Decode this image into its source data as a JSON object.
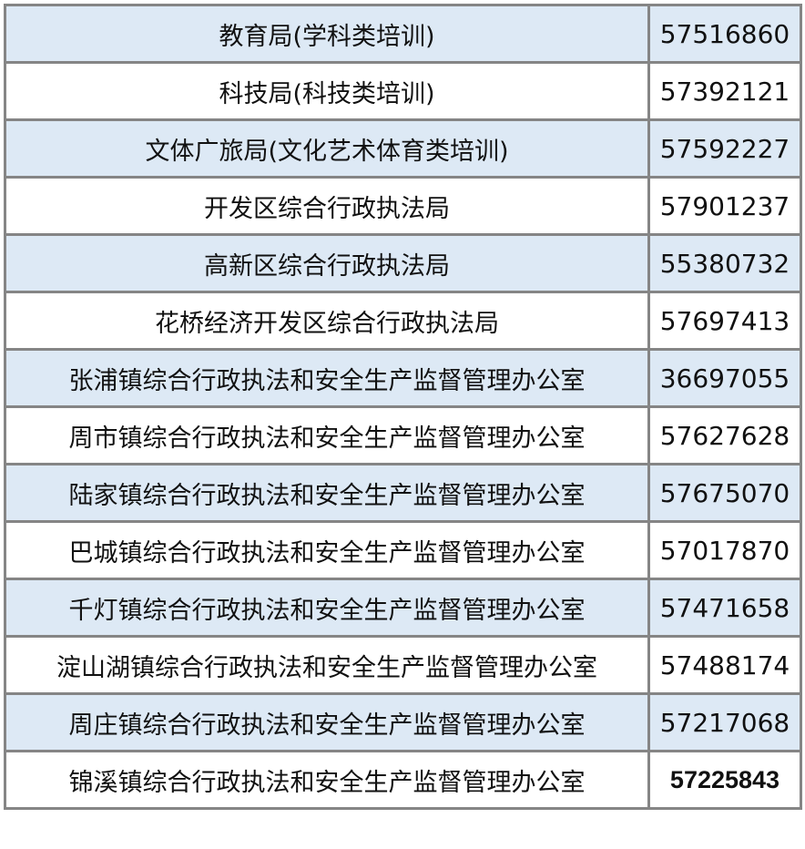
{
  "shade_color": "#dde9f5",
  "border_color": "#858585",
  "rows": [
    {
      "name": "教育局(学科类培训)",
      "phone": "57516860"
    },
    {
      "name": "科技局(科技类培训)",
      "phone": "57392121"
    },
    {
      "name": "文体广旅局(文化艺术体育类培训)",
      "phone": "57592227"
    },
    {
      "name": "开发区综合行政执法局",
      "phone": "57901237"
    },
    {
      "name": "高新区综合行政执法局",
      "phone": "55380732"
    },
    {
      "name": "花桥经济开发区综合行政执法局",
      "phone": "57697413"
    },
    {
      "name": "张浦镇综合行政执法和安全生产监督管理办公室",
      "phone": "36697055"
    },
    {
      "name": "周市镇综合行政执法和安全生产监督管理办公室",
      "phone": "57627628"
    },
    {
      "name": "陆家镇综合行政执法和安全生产监督管理办公室",
      "phone": "57675070"
    },
    {
      "name": "巴城镇综合行政执法和安全生产监督管理办公室",
      "phone": "57017870"
    },
    {
      "name": "千灯镇综合行政执法和安全生产监督管理办公室",
      "phone": "57471658"
    },
    {
      "name": "淀山湖镇综合行政执法和安全生产监督管理办公室",
      "phone": "57488174"
    },
    {
      "name": "周庄镇综合行政执法和安全生产监督管理办公室",
      "phone": "57217068"
    },
    {
      "name": "锦溪镇综合行政执法和安全生产监督管理办公室",
      "phone": "57225843"
    }
  ]
}
